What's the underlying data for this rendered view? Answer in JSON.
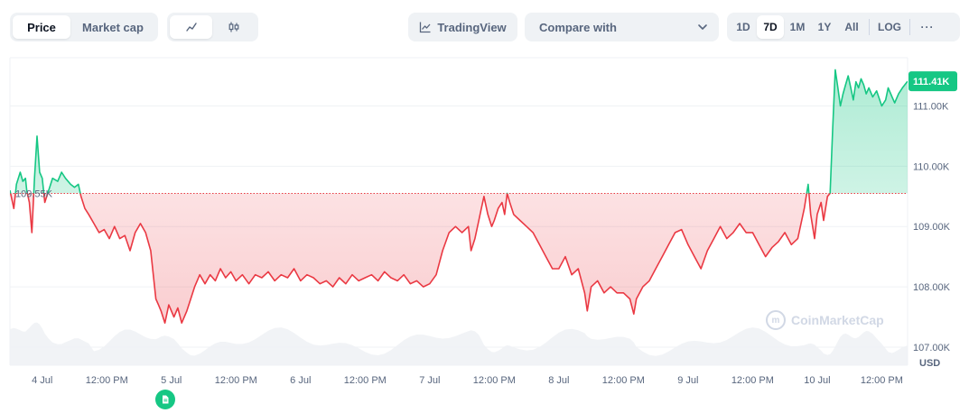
{
  "toolbar": {
    "type_tabs": [
      {
        "label": "Price",
        "active": true
      },
      {
        "label": "Market cap",
        "active": false
      }
    ],
    "style_icons": [
      "line-chart-icon",
      "candlestick-icon"
    ],
    "tradingview_label": "TradingView",
    "compare_label": "Compare with",
    "ranges": [
      "1D",
      "7D",
      "1M",
      "1Y",
      "All"
    ],
    "active_range": "7D",
    "log_label": "LOG",
    "more_label": "···"
  },
  "watermark": "CoinMarketCap",
  "colors": {
    "up": "#16c784",
    "down": "#ea3943",
    "baseline": "#ea3943",
    "grid": "#eff2f5",
    "volume": "#eff2f5"
  },
  "chart_data": {
    "type": "area",
    "currency_label": "USD",
    "baseline_value": 109550,
    "baseline_label": "109.55K",
    "last_value": 111410,
    "last_label": "111.41K",
    "ylim": [
      106700,
      111800
    ],
    "y_ticks": [
      {
        "value": 107000,
        "label": "107.00K"
      },
      {
        "value": 108000,
        "label": "108.00K"
      },
      {
        "value": 109000,
        "label": "109.00K"
      },
      {
        "value": 110000,
        "label": "110.00K"
      },
      {
        "value": 111000,
        "label": "111.00K"
      }
    ],
    "x_range": [
      -0.25,
      6.7
    ],
    "x_ticks": [
      {
        "t": 0,
        "label": "4 Jul"
      },
      {
        "t": 0.5,
        "label": "12:00 PM"
      },
      {
        "t": 1,
        "label": "5 Jul"
      },
      {
        "t": 1.5,
        "label": "12:00 PM"
      },
      {
        "t": 2,
        "label": "6 Jul"
      },
      {
        "t": 2.5,
        "label": "12:00 PM"
      },
      {
        "t": 3,
        "label": "7 Jul"
      },
      {
        "t": 3.5,
        "label": "12:00 PM"
      },
      {
        "t": 4,
        "label": "8 Jul"
      },
      {
        "t": 4.5,
        "label": "12:00 PM"
      },
      {
        "t": 5,
        "label": "9 Jul"
      },
      {
        "t": 5.5,
        "label": "12:00 PM"
      },
      {
        "t": 6,
        "label": "10 Jul"
      },
      {
        "t": 6.5,
        "label": "12:00 PM"
      }
    ],
    "x_unit": "days",
    "series": [
      {
        "points": [
          [
            -0.25,
            109600
          ],
          [
            -0.22,
            109300
          ],
          [
            -0.2,
            109700
          ],
          [
            -0.17,
            109900
          ],
          [
            -0.15,
            109750
          ],
          [
            -0.13,
            109800
          ],
          [
            -0.12,
            109600
          ],
          [
            -0.1,
            109400
          ],
          [
            -0.08,
            108900
          ],
          [
            -0.06,
            109800
          ],
          [
            -0.04,
            110500
          ],
          [
            -0.02,
            109900
          ],
          [
            0.0,
            109800
          ],
          [
            0.02,
            109400
          ],
          [
            0.05,
            109600
          ],
          [
            0.08,
            109800
          ],
          [
            0.12,
            109750
          ],
          [
            0.15,
            109900
          ],
          [
            0.18,
            109800
          ],
          [
            0.22,
            109700
          ],
          [
            0.25,
            109650
          ],
          [
            0.28,
            109700
          ],
          [
            0.3,
            109500
          ],
          [
            0.33,
            109300
          ],
          [
            0.36,
            109200
          ],
          [
            0.4,
            109050
          ],
          [
            0.44,
            108900
          ],
          [
            0.48,
            108950
          ],
          [
            0.52,
            108800
          ],
          [
            0.56,
            109000
          ],
          [
            0.6,
            108800
          ],
          [
            0.64,
            108850
          ],
          [
            0.68,
            108600
          ],
          [
            0.72,
            108900
          ],
          [
            0.76,
            109050
          ],
          [
            0.8,
            108900
          ],
          [
            0.84,
            108600
          ],
          [
            0.88,
            107800
          ],
          [
            0.9,
            107700
          ],
          [
            0.92,
            107600
          ],
          [
            0.95,
            107400
          ],
          [
            0.98,
            107700
          ],
          [
            1.02,
            107500
          ],
          [
            1.05,
            107650
          ],
          [
            1.08,
            107400
          ],
          [
            1.12,
            107600
          ],
          [
            1.15,
            107800
          ],
          [
            1.18,
            108000
          ],
          [
            1.22,
            108200
          ],
          [
            1.26,
            108050
          ],
          [
            1.3,
            108200
          ],
          [
            1.34,
            108100
          ],
          [
            1.38,
            108300
          ],
          [
            1.42,
            108150
          ],
          [
            1.46,
            108250
          ],
          [
            1.5,
            108100
          ],
          [
            1.55,
            108200
          ],
          [
            1.6,
            108050
          ],
          [
            1.65,
            108200
          ],
          [
            1.7,
            108150
          ],
          [
            1.75,
            108250
          ],
          [
            1.8,
            108100
          ],
          [
            1.85,
            108200
          ],
          [
            1.9,
            108150
          ],
          [
            1.95,
            108300
          ],
          [
            2.0,
            108100
          ],
          [
            2.05,
            108200
          ],
          [
            2.1,
            108150
          ],
          [
            2.15,
            108050
          ],
          [
            2.2,
            108100
          ],
          [
            2.25,
            108000
          ],
          [
            2.3,
            108150
          ],
          [
            2.35,
            108050
          ],
          [
            2.4,
            108200
          ],
          [
            2.45,
            108100
          ],
          [
            2.5,
            108150
          ],
          [
            2.55,
            108200
          ],
          [
            2.6,
            108100
          ],
          [
            2.65,
            108250
          ],
          [
            2.7,
            108150
          ],
          [
            2.75,
            108100
          ],
          [
            2.8,
            108200
          ],
          [
            2.85,
            108050
          ],
          [
            2.9,
            108100
          ],
          [
            2.95,
            108000
          ],
          [
            3.0,
            108050
          ],
          [
            3.05,
            108200
          ],
          [
            3.1,
            108600
          ],
          [
            3.15,
            108900
          ],
          [
            3.2,
            109000
          ],
          [
            3.25,
            108900
          ],
          [
            3.3,
            109000
          ],
          [
            3.32,
            108600
          ],
          [
            3.35,
            108800
          ],
          [
            3.38,
            109100
          ],
          [
            3.4,
            109300
          ],
          [
            3.42,
            109500
          ],
          [
            3.45,
            109200
          ],
          [
            3.48,
            109000
          ],
          [
            3.5,
            109100
          ],
          [
            3.53,
            109300
          ],
          [
            3.56,
            109400
          ],
          [
            3.58,
            109200
          ],
          [
            3.6,
            109550
          ],
          [
            3.62,
            109400
          ],
          [
            3.65,
            109200
          ],
          [
            3.7,
            109100
          ],
          [
            3.75,
            109000
          ],
          [
            3.8,
            108900
          ],
          [
            3.85,
            108700
          ],
          [
            3.9,
            108500
          ],
          [
            3.95,
            108300
          ],
          [
            4.0,
            108300
          ],
          [
            4.05,
            108500
          ],
          [
            4.1,
            108200
          ],
          [
            4.15,
            108300
          ],
          [
            4.2,
            107900
          ],
          [
            4.22,
            107600
          ],
          [
            4.25,
            108000
          ],
          [
            4.3,
            108100
          ],
          [
            4.35,
            107900
          ],
          [
            4.4,
            108000
          ],
          [
            4.45,
            107900
          ],
          [
            4.5,
            107900
          ],
          [
            4.55,
            107800
          ],
          [
            4.58,
            107550
          ],
          [
            4.6,
            107800
          ],
          [
            4.65,
            108000
          ],
          [
            4.7,
            108100
          ],
          [
            4.75,
            108300
          ],
          [
            4.8,
            108500
          ],
          [
            4.85,
            108700
          ],
          [
            4.9,
            108900
          ],
          [
            4.95,
            108950
          ],
          [
            5.0,
            108700
          ],
          [
            5.05,
            108500
          ],
          [
            5.1,
            108300
          ],
          [
            5.15,
            108600
          ],
          [
            5.2,
            108800
          ],
          [
            5.25,
            109000
          ],
          [
            5.3,
            108800
          ],
          [
            5.35,
            108900
          ],
          [
            5.4,
            109050
          ],
          [
            5.45,
            108900
          ],
          [
            5.5,
            108900
          ],
          [
            5.55,
            108700
          ],
          [
            5.6,
            108500
          ],
          [
            5.65,
            108650
          ],
          [
            5.7,
            108750
          ],
          [
            5.75,
            108900
          ],
          [
            5.8,
            108700
          ],
          [
            5.85,
            108800
          ],
          [
            5.9,
            109300
          ],
          [
            5.93,
            109700
          ],
          [
            5.95,
            109200
          ],
          [
            5.98,
            108800
          ],
          [
            6.0,
            109200
          ],
          [
            6.03,
            109400
          ],
          [
            6.05,
            109100
          ],
          [
            6.08,
            109500
          ],
          [
            6.1,
            109550
          ],
          [
            6.12,
            110600
          ],
          [
            6.14,
            111600
          ],
          [
            6.16,
            111300
          ],
          [
            6.18,
            111000
          ],
          [
            6.2,
            111200
          ],
          [
            6.22,
            111350
          ],
          [
            6.24,
            111500
          ],
          [
            6.26,
            111300
          ],
          [
            6.28,
            111100
          ],
          [
            6.3,
            111400
          ],
          [
            6.32,
            111300
          ],
          [
            6.34,
            111450
          ],
          [
            6.36,
            111350
          ],
          [
            6.38,
            111200
          ],
          [
            6.4,
            111300
          ],
          [
            6.43,
            111150
          ],
          [
            6.46,
            111250
          ],
          [
            6.5,
            111000
          ],
          [
            6.53,
            111100
          ],
          [
            6.55,
            111300
          ],
          [
            6.58,
            111150
          ],
          [
            6.6,
            111050
          ],
          [
            6.63,
            111200
          ],
          [
            6.66,
            111300
          ],
          [
            6.7,
            111410
          ]
        ]
      }
    ]
  }
}
